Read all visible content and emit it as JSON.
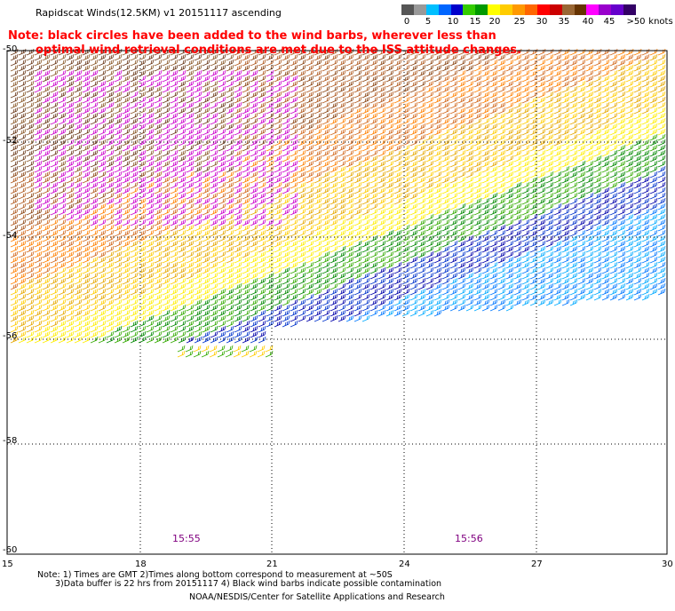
{
  "header": {
    "title": "Rapidscat Winds(12.5KM) v1 20151117 ascending"
  },
  "note": {
    "line1": "Note: black circles have been added to the wind barbs, wherever less than",
    "line2": "optimal wind retrieval conditions are met due to the ISS attitude changes."
  },
  "legend": {
    "labels": [
      "0",
      "5",
      "10",
      "15",
      "20",
      "25",
      "30",
      "35",
      "40",
      "45",
      ">50",
      "knots"
    ],
    "colors": [
      "#555555",
      "#999999",
      "#00bfff",
      "#0066ff",
      "#0000cc",
      "#33cc00",
      "#009900",
      "#ffff00",
      "#ffcc00",
      "#ff9900",
      "#ff6600",
      "#ff0000",
      "#cc0000",
      "#996633",
      "#663300",
      "#ff00ff",
      "#9900cc",
      "#6600cc",
      "#330066"
    ]
  },
  "axes": {
    "y_labels": [
      "-50",
      "-52",
      "-54",
      "-56",
      "-58",
      "-60"
    ],
    "x_labels": [
      "15",
      "18",
      "21",
      "24",
      "27",
      "30"
    ]
  },
  "times": [
    "15:55",
    "15:56"
  ],
  "footer": {
    "line1": "Note: 1) Times are GMT 2)Times along bottom correspond to measurement at ~50S",
    "line2": "3)Data buffer is 22 hrs from 20151117 4) Black wind barbs indicate possible contamination",
    "line3": "NOAA/NESDIS/Center for Satellite Applications and Research"
  }
}
